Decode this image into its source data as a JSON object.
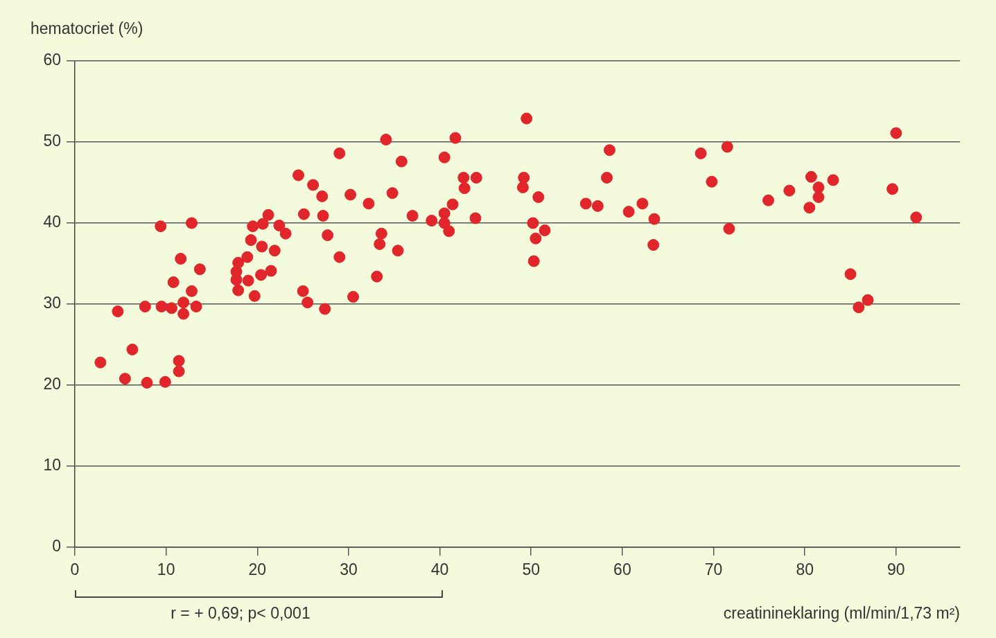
{
  "chart_data": {
    "type": "scatter",
    "xlabel": "creatinineklaring (ml/min/1,73 m²)",
    "ylabel": "hematocriet (%)",
    "annotations": [
      "r = + 0,69; p< 0,001"
    ],
    "xlim": [
      0,
      97
    ],
    "xticks": [
      0,
      10,
      20,
      30,
      40,
      50,
      60,
      70,
      80,
      90
    ],
    "ylim": [
      0,
      60
    ],
    "yticks": [
      0,
      10,
      20,
      30,
      40,
      50,
      60
    ],
    "grid": "y",
    "marker": "circle",
    "legend": false,
    "series": [
      {
        "color": "#e0262b",
        "x": [
          2.8,
          6.3,
          5.5,
          7.9,
          9.9,
          11.4,
          11.4,
          4.7,
          7.7,
          9.5,
          10.6,
          11.9,
          11.9,
          13.3,
          10.8,
          12.8,
          11.6,
          13.7,
          9.4,
          12.8,
          17.9,
          17.7,
          19.0,
          17.7,
          17.9,
          18.9,
          19.7,
          20.4,
          21.5,
          19.3,
          20.5,
          21.9,
          19.5,
          20.6,
          21.2,
          22.4,
          23.1,
          24.5,
          26.1,
          27.1,
          25.1,
          27.2,
          27.7,
          25.0,
          25.5,
          27.4,
          29.0,
          29.0,
          30.5,
          30.2,
          32.2,
          33.1,
          33.4,
          33.6,
          34.1,
          34.8,
          35.4,
          35.8,
          37.0,
          39.1,
          40.5,
          40.5,
          40.5,
          41.0,
          41.4,
          41.7,
          42.6,
          42.7,
          44.0,
          43.9,
          49.5,
          49.2,
          49.1,
          50.2,
          50.5,
          50.3,
          50.8,
          51.5,
          56.0,
          57.3,
          58.3,
          58.6,
          60.7,
          62.2,
          63.5,
          63.4,
          68.6,
          71.5,
          69.8,
          71.7,
          76.0,
          78.3,
          80.5,
          80.7,
          81.5,
          81.5,
          83.1,
          85.0,
          85.9,
          86.9,
          89.6,
          90.0,
          92.2
        ],
        "values": [
          22.8,
          24.4,
          20.8,
          20.3,
          20.4,
          23.0,
          21.7,
          29.1,
          29.7,
          29.7,
          29.5,
          30.2,
          28.8,
          29.7,
          32.7,
          31.6,
          35.6,
          34.3,
          39.6,
          40.0,
          31.7,
          33.0,
          32.9,
          34.0,
          35.1,
          35.8,
          31.0,
          33.6,
          34.1,
          37.9,
          37.1,
          36.6,
          39.6,
          39.9,
          41.0,
          39.7,
          38.7,
          45.9,
          44.7,
          43.3,
          41.1,
          40.9,
          38.5,
          31.6,
          30.2,
          29.4,
          48.6,
          35.8,
          30.9,
          43.5,
          42.4,
          33.4,
          37.4,
          38.7,
          50.3,
          43.7,
          36.6,
          47.6,
          40.9,
          40.3,
          48.1,
          41.2,
          40.0,
          39.0,
          42.3,
          50.5,
          45.6,
          44.3,
          45.6,
          40.6,
          52.9,
          45.6,
          44.4,
          40.0,
          38.1,
          35.3,
          43.2,
          39.1,
          42.4,
          42.1,
          45.6,
          49.0,
          41.4,
          42.4,
          40.5,
          37.3,
          48.6,
          49.4,
          45.1,
          39.3,
          42.8,
          44.0,
          41.9,
          45.7,
          44.4,
          43.2,
          45.3,
          33.7,
          29.6,
          30.5,
          44.2,
          51.1,
          40.7
        ]
      }
    ]
  }
}
